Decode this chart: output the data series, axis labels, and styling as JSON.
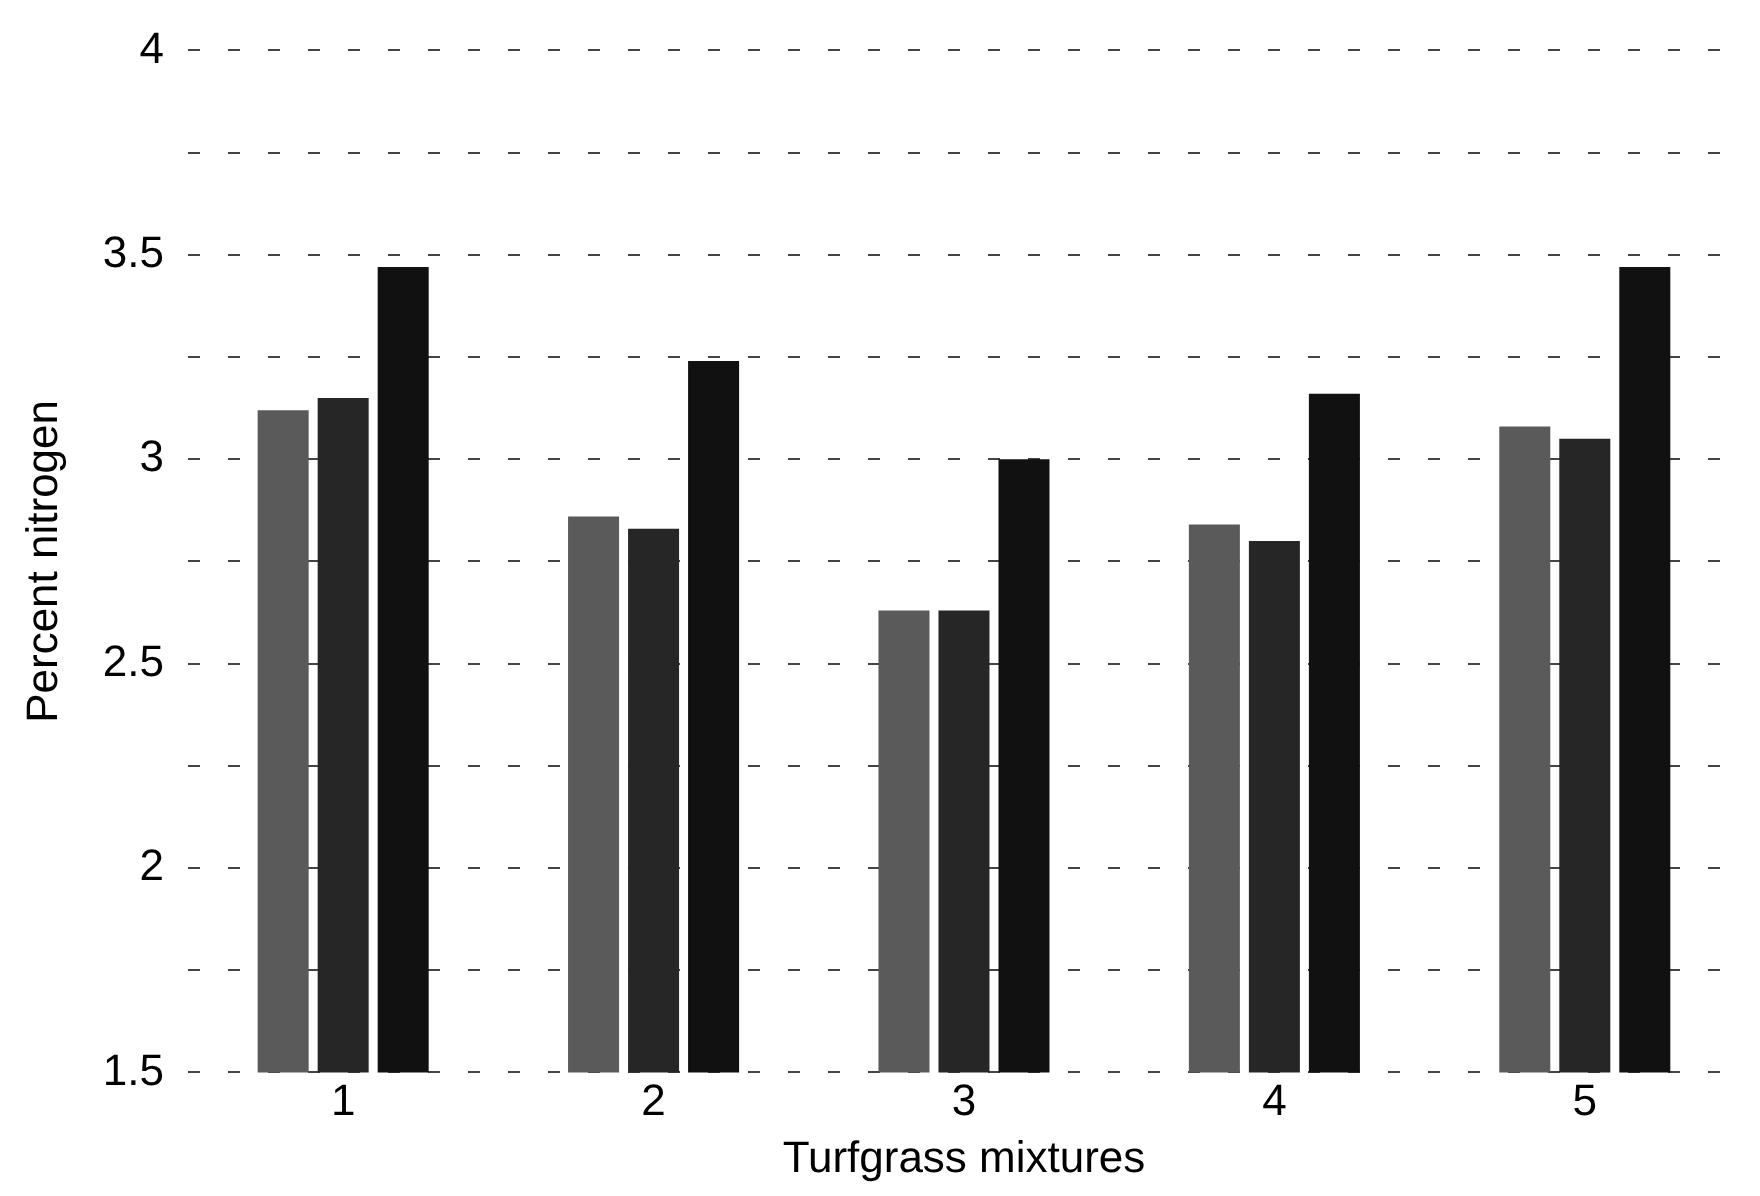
{
  "chart_data": {
    "type": "bar",
    "xlabel": "Turfgrass mixtures",
    "ylabel": "Percent nitrogen",
    "categories": [
      "1",
      "2",
      "3",
      "4",
      "5"
    ],
    "series": [
      {
        "color": "#5a5a5a",
        "values": [
          3.12,
          2.86,
          2.63,
          2.84,
          3.08
        ]
      },
      {
        "color": "#262626",
        "values": [
          3.15,
          2.83,
          2.63,
          2.8,
          3.05
        ]
      },
      {
        "color": "#111111",
        "values": [
          3.47,
          3.24,
          3.0,
          3.16,
          3.47
        ]
      }
    ],
    "ylim": [
      1.5,
      4
    ],
    "yticks": [
      1.5,
      {
        "value": 1.75,
        "label": null
      },
      2,
      {
        "value": 2.25,
        "label": null
      },
      2.5,
      {
        "value": 2.75,
        "label": null
      },
      3,
      {
        "value": 3.25,
        "label": null
      },
      3.5,
      {
        "value": 3.75,
        "label": null
      },
      4
    ],
    "grid": "y",
    "legend": false
  }
}
